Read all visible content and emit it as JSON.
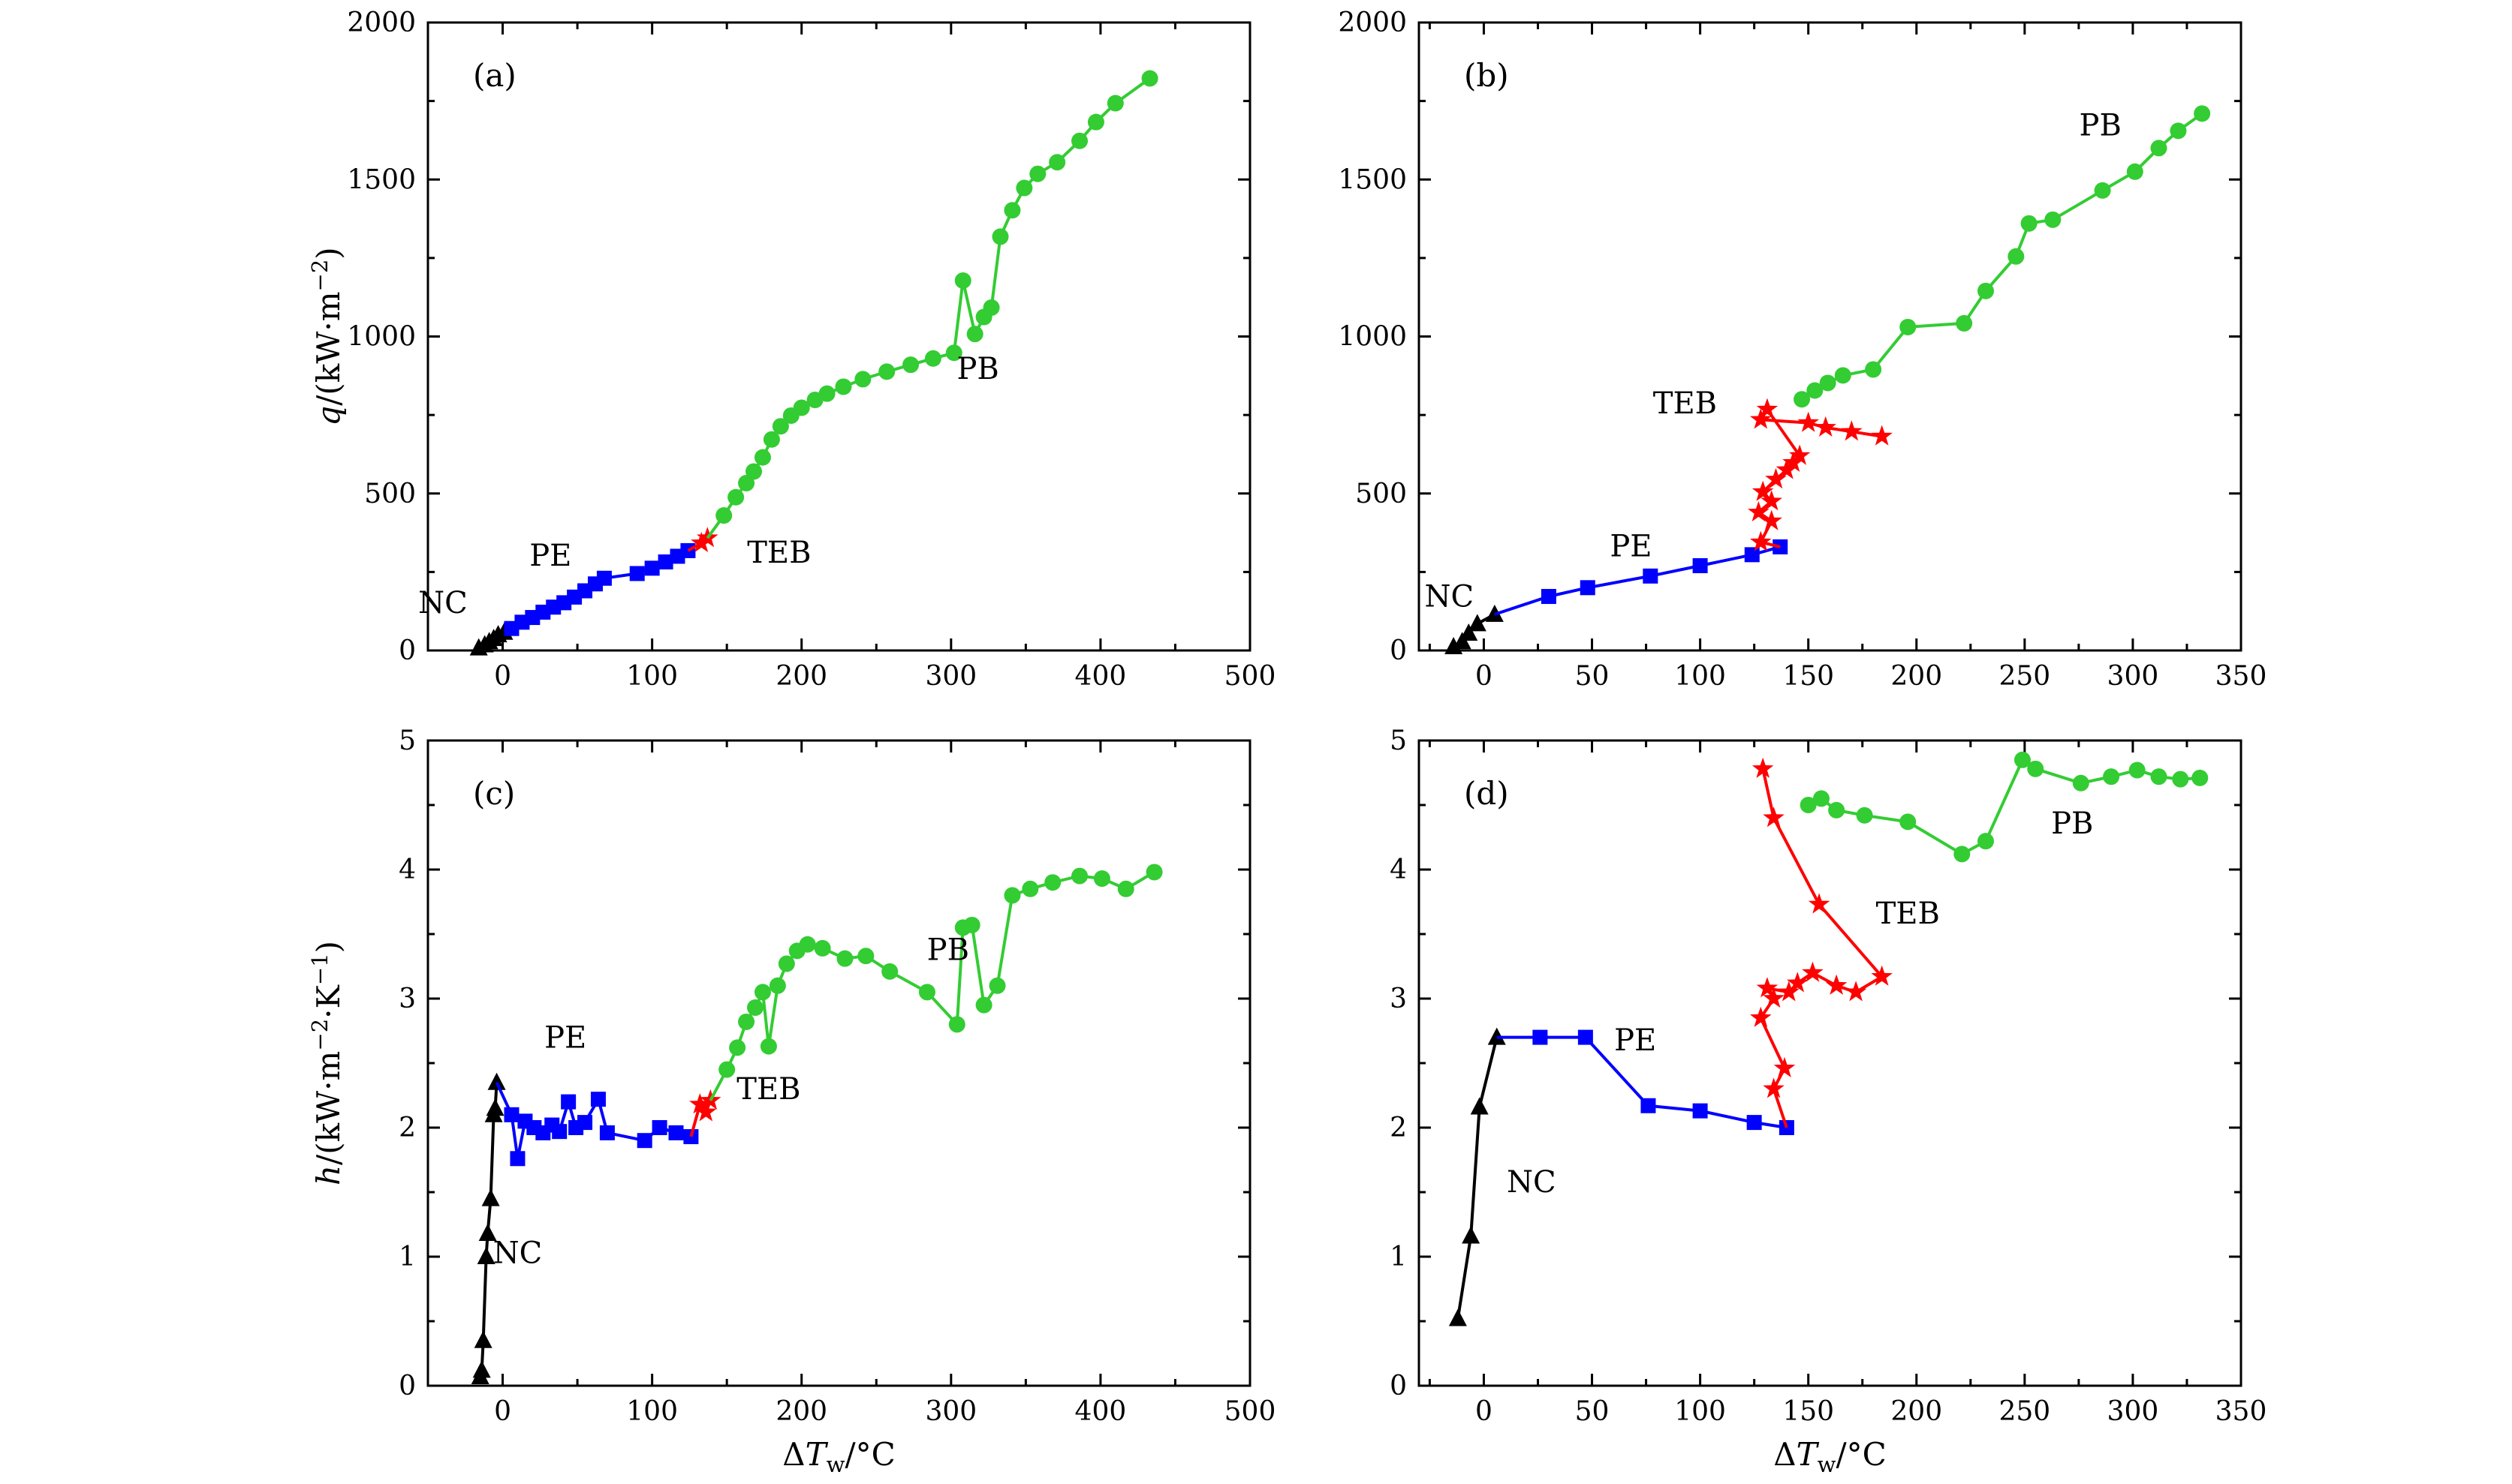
{
  "figure": {
    "background": "#ffffff",
    "colors": {
      "NC": "#000000",
      "PE": "#0000ff",
      "TEB": "#ff0000",
      "PB": "#33cc33"
    },
    "xlabel_parts": [
      {
        "text": "Δ"
      },
      {
        "text": "T",
        "italic": true
      },
      {
        "text": "w",
        "sub": true
      },
      {
        "text": "/°C"
      }
    ],
    "ylabel_top_parts": [
      {
        "text": "q",
        "italic": true
      },
      {
        "text": "/(kW·m"
      },
      {
        "text": "−2",
        "sup": true
      },
      {
        "text": ")"
      }
    ],
    "ylabel_bottom_parts": [
      {
        "text": "h",
        "italic": true
      },
      {
        "text": "/(kW·m"
      },
      {
        "text": "−2",
        "sup": true
      },
      {
        "text": "·K"
      },
      {
        "text": "−1",
        "sup": true
      },
      {
        "text": ")"
      }
    ]
  },
  "chart_data": [
    {
      "id": "a",
      "type": "line",
      "panel_label": "(a)",
      "xlim": [
        -50,
        500
      ],
      "ylim": [
        0,
        2000
      ],
      "xticks": [
        0,
        100,
        200,
        300,
        400,
        500
      ],
      "yticks": [
        0,
        500,
        1000,
        1500,
        2000
      ],
      "x_minor_step": 50,
      "y_minor_step": 250,
      "has_xlabel": false,
      "ylabel": "top",
      "series": [
        {
          "name": "NC",
          "marker": "triangle",
          "connect_prev": false,
          "label_pos": [
            -40,
            120
          ],
          "points": [
            [
              -16,
              8
            ],
            [
              -12,
              18
            ],
            [
              -9,
              28
            ],
            [
              -6,
              38
            ],
            [
              -3,
              50
            ],
            [
              1,
              58
            ]
          ]
        },
        {
          "name": "PE",
          "marker": "square",
          "connect_prev": true,
          "label_pos": [
            32,
            270
          ],
          "points": [
            [
              6,
              70
            ],
            [
              13,
              90
            ],
            [
              20,
              105
            ],
            [
              27,
              122
            ],
            [
              34,
              138
            ],
            [
              41,
              152
            ],
            [
              48,
              170
            ],
            [
              55,
              190
            ],
            [
              62,
              212
            ],
            [
              68,
              230
            ],
            [
              90,
              245
            ],
            [
              100,
              262
            ],
            [
              109,
              282
            ],
            [
              117,
              300
            ],
            [
              124,
              318
            ]
          ]
        },
        {
          "name": "TEB",
          "marker": "star",
          "connect_prev": true,
          "label_pos": [
            185,
            280
          ],
          "points": [
            [
              133,
              342
            ],
            [
              137,
              358
            ]
          ]
        },
        {
          "name": "PB",
          "marker": "circle",
          "connect_prev": true,
          "label_pos": [
            318,
            865
          ],
          "points": [
            [
              148,
              430
            ],
            [
              156,
              488
            ],
            [
              163,
              533
            ],
            [
              168,
              570
            ],
            [
              174,
              615
            ],
            [
              180,
              672
            ],
            [
              186,
              714
            ],
            [
              193,
              748
            ],
            [
              200,
              773
            ],
            [
              209,
              798
            ],
            [
              217,
              818
            ],
            [
              228,
              840
            ],
            [
              241,
              864
            ],
            [
              257,
              888
            ],
            [
              273,
              910
            ],
            [
              288,
              930
            ],
            [
              302,
              948
            ],
            [
              308,
              1178
            ],
            [
              316,
              1008
            ],
            [
              322,
              1062
            ],
            [
              327,
              1092
            ],
            [
              333,
              1318
            ],
            [
              341,
              1402
            ],
            [
              349,
              1473
            ],
            [
              358,
              1518
            ],
            [
              371,
              1555
            ],
            [
              386,
              1623
            ],
            [
              397,
              1683
            ],
            [
              410,
              1743
            ],
            [
              433,
              1822
            ]
          ]
        }
      ]
    },
    {
      "id": "b",
      "type": "line",
      "panel_label": "(b)",
      "xlim": [
        -30,
        350
      ],
      "ylim": [
        0,
        2000
      ],
      "xticks": [
        0,
        50,
        100,
        150,
        200,
        250,
        300,
        350
      ],
      "yticks": [
        0,
        500,
        1000,
        1500,
        2000
      ],
      "x_minor_step": 25,
      "y_minor_step": 250,
      "has_xlabel": false,
      "ylabel": null,
      "series": [
        {
          "name": "NC",
          "marker": "triangle",
          "connect_prev": false,
          "label_pos": [
            -16,
            140
          ],
          "points": [
            [
              -14,
              12
            ],
            [
              -10,
              28
            ],
            [
              -7,
              55
            ],
            [
              -3,
              85
            ],
            [
              5,
              115
            ]
          ]
        },
        {
          "name": "PE",
          "marker": "square",
          "connect_prev": true,
          "label_pos": [
            68,
            300
          ],
          "points": [
            [
              30,
              172
            ],
            [
              48,
              200
            ],
            [
              77,
              237
            ],
            [
              100,
              270
            ],
            [
              124,
              305
            ],
            [
              137,
              330
            ]
          ]
        },
        {
          "name": "TEB",
          "marker": "star",
          "connect_prev": true,
          "label_pos": [
            93,
            755
          ],
          "points": [
            [
              128,
              345
            ],
            [
              133,
              412
            ],
            [
              127,
              440
            ],
            [
              133,
              475
            ],
            [
              129,
              505
            ],
            [
              135,
              545
            ],
            [
              140,
              575
            ],
            [
              143,
              598
            ],
            [
              146,
              620
            ],
            [
              131,
              768
            ],
            [
              128,
              735
            ],
            [
              150,
              725
            ],
            [
              158,
              710
            ],
            [
              170,
              697
            ],
            [
              184,
              682
            ]
          ]
        },
        {
          "name": "PB",
          "marker": "circle",
          "connect_prev": false,
          "label_pos": [
            285,
            1640
          ],
          "points": [
            [
              147,
              800
            ],
            [
              153,
              828
            ],
            [
              159,
              852
            ],
            [
              166,
              876
            ],
            [
              180,
              895
            ],
            [
              196,
              1030
            ],
            [
              222,
              1042
            ],
            [
              232,
              1145
            ],
            [
              246,
              1255
            ],
            [
              252,
              1360
            ],
            [
              263,
              1372
            ],
            [
              286,
              1465
            ],
            [
              301,
              1525
            ],
            [
              312,
              1600
            ],
            [
              321,
              1655
            ],
            [
              332,
              1710
            ]
          ]
        }
      ]
    },
    {
      "id": "c",
      "type": "line",
      "panel_label": "(c)",
      "xlim": [
        -50,
        500
      ],
      "ylim": [
        0,
        5
      ],
      "xticks": [
        0,
        100,
        200,
        300,
        400,
        500
      ],
      "yticks": [
        0,
        1,
        2,
        3,
        4,
        5
      ],
      "x_minor_step": 50,
      "y_minor_step": 0.5,
      "has_xlabel": true,
      "ylabel": "bottom",
      "series": [
        {
          "name": "NC",
          "marker": "triangle",
          "connect_prev": false,
          "label_pos": [
            10,
            0.95
          ],
          "points": [
            [
              -15,
              0.07
            ],
            [
              -14,
              0.12
            ],
            [
              -13,
              0.35
            ],
            [
              -11,
              1.0
            ],
            [
              -10,
              1.18
            ],
            [
              -8,
              1.45
            ],
            [
              -6,
              2.1
            ],
            [
              -5,
              2.15
            ],
            [
              -4,
              2.35
            ]
          ]
        },
        {
          "name": "PE",
          "marker": "square",
          "connect_prev": true,
          "label_pos": [
            42,
            2.62
          ],
          "points": [
            [
              6,
              2.1
            ],
            [
              10,
              1.76
            ],
            [
              15,
              2.05
            ],
            [
              21,
              2.0
            ],
            [
              27,
              1.96
            ],
            [
              33,
              2.02
            ],
            [
              38,
              1.97
            ],
            [
              44,
              2.2
            ],
            [
              49,
              2.0
            ],
            [
              55,
              2.04
            ],
            [
              64,
              2.22
            ],
            [
              70,
              1.96
            ],
            [
              95,
              1.9
            ],
            [
              105,
              2.0
            ],
            [
              116,
              1.96
            ],
            [
              126,
              1.93
            ]
          ]
        },
        {
          "name": "TEB",
          "marker": "star",
          "connect_prev": true,
          "label_pos": [
            178,
            2.22
          ],
          "points": [
            [
              132,
              2.18
            ],
            [
              136,
              2.12
            ],
            [
              139,
              2.21
            ]
          ]
        },
        {
          "name": "PB",
          "marker": "circle",
          "connect_prev": true,
          "label_pos": [
            298,
            3.3
          ],
          "points": [
            [
              150,
              2.45
            ],
            [
              157,
              2.62
            ],
            [
              163,
              2.82
            ],
            [
              169,
              2.93
            ],
            [
              174,
              3.05
            ],
            [
              178,
              2.63
            ],
            [
              184,
              3.1
            ],
            [
              190,
              3.27
            ],
            [
              197,
              3.37
            ],
            [
              204,
              3.42
            ],
            [
              214,
              3.39
            ],
            [
              229,
              3.31
            ],
            [
              243,
              3.33
            ],
            [
              259,
              3.21
            ],
            [
              284,
              3.05
            ],
            [
              304,
              2.8
            ],
            [
              308,
              3.55
            ],
            [
              314,
              3.57
            ],
            [
              322,
              2.95
            ],
            [
              331,
              3.1
            ],
            [
              341,
              3.8
            ],
            [
              353,
              3.85
            ],
            [
              368,
              3.9
            ],
            [
              386,
              3.95
            ],
            [
              401,
              3.93
            ],
            [
              417,
              3.85
            ],
            [
              436,
              3.98
            ]
          ]
        }
      ]
    },
    {
      "id": "d",
      "type": "line",
      "panel_label": "(d)",
      "xlim": [
        -30,
        350
      ],
      "ylim": [
        0,
        5
      ],
      "xticks": [
        0,
        50,
        100,
        150,
        200,
        250,
        300,
        350
      ],
      "yticks": [
        0,
        1,
        2,
        3,
        4,
        5
      ],
      "x_minor_step": 25,
      "y_minor_step": 0.5,
      "has_xlabel": true,
      "ylabel": null,
      "series": [
        {
          "name": "NC",
          "marker": "triangle",
          "connect_prev": false,
          "label_pos": [
            22,
            1.5
          ],
          "points": [
            [
              -12,
              0.52
            ],
            [
              -6,
              1.16
            ],
            [
              -2,
              2.16
            ],
            [
              6,
              2.7
            ]
          ]
        },
        {
          "name": "PE",
          "marker": "square",
          "connect_prev": true,
          "label_pos": [
            70,
            2.6
          ],
          "points": [
            [
              26,
              2.7
            ],
            [
              47,
              2.7
            ],
            [
              76,
              2.17
            ],
            [
              100,
              2.13
            ],
            [
              125,
              2.04
            ],
            [
              140,
              2.0
            ]
          ]
        },
        {
          "name": "TEB",
          "marker": "star",
          "connect_prev": true,
          "label_pos": [
            196,
            3.58
          ],
          "points": [
            [
              134,
              2.3
            ],
            [
              139,
              2.46
            ],
            [
              128,
              2.85
            ],
            [
              134,
              3.0
            ],
            [
              131,
              3.08
            ],
            [
              141,
              3.05
            ],
            [
              145,
              3.12
            ],
            [
              152,
              3.2
            ],
            [
              163,
              3.1
            ],
            [
              172,
              3.05
            ],
            [
              184,
              3.17
            ],
            [
              155,
              3.73
            ],
            [
              134,
              4.4
            ],
            [
              129,
              4.78
            ]
          ]
        },
        {
          "name": "PB",
          "marker": "circle",
          "connect_prev": false,
          "label_pos": [
            272,
            4.28
          ],
          "points": [
            [
              150,
              4.5
            ],
            [
              156,
              4.55
            ],
            [
              163,
              4.46
            ],
            [
              176,
              4.42
            ],
            [
              196,
              4.37
            ],
            [
              221,
              4.12
            ],
            [
              232,
              4.22
            ],
            [
              249,
              4.85
            ],
            [
              255,
              4.78
            ],
            [
              276,
              4.67
            ],
            [
              290,
              4.72
            ],
            [
              302,
              4.77
            ],
            [
              312,
              4.72
            ],
            [
              322,
              4.7
            ],
            [
              331,
              4.71
            ]
          ]
        }
      ]
    }
  ]
}
